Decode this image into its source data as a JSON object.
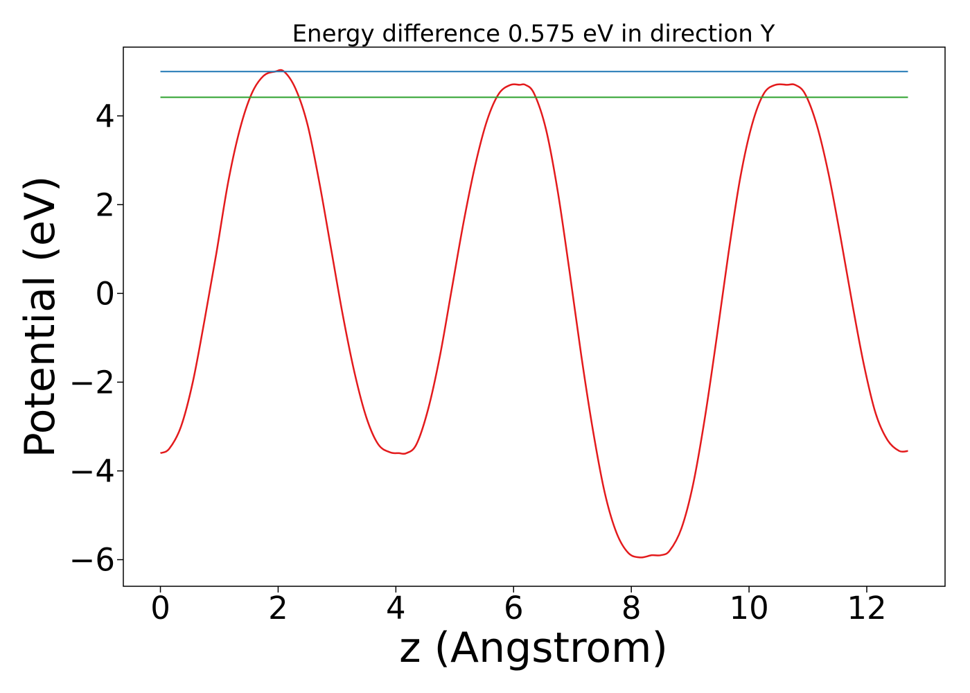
{
  "chart_data": {
    "type": "line",
    "title": "Energy difference 0.575 eV in direction Y",
    "xlabel": "z (Angstrom)",
    "ylabel": "Potential (eV)",
    "xlim": [
      -0.63,
      13.33
    ],
    "ylim": [
      -6.6,
      5.55
    ],
    "x_ticks": [
      0,
      2,
      4,
      6,
      8,
      10,
      12
    ],
    "x_tick_labels": [
      "0",
      "2",
      "4",
      "6",
      "8",
      "10",
      "12"
    ],
    "y_ticks": [
      -6,
      -4,
      -2,
      0,
      2,
      4
    ],
    "y_tick_labels": [
      "−6",
      "−4",
      "−2",
      "0",
      "2",
      "4"
    ],
    "grid": false,
    "legend": "none",
    "series": [
      {
        "color": "#e31a1c",
        "style": "curve",
        "x": [
          0.0,
          0.15,
          0.35,
          0.55,
          0.75,
          0.95,
          1.15,
          1.35,
          1.55,
          1.75,
          1.95,
          2.1,
          2.3,
          2.5,
          2.7,
          2.9,
          3.1,
          3.3,
          3.5,
          3.7,
          3.9,
          4.05,
          4.18,
          4.35,
          4.55,
          4.75,
          4.95,
          5.15,
          5.35,
          5.55,
          5.75,
          5.95,
          6.1,
          6.2,
          6.35,
          6.55,
          6.75,
          6.95,
          7.15,
          7.35,
          7.55,
          7.75,
          7.95,
          8.15,
          8.35,
          8.5,
          8.65,
          8.85,
          9.05,
          9.25,
          9.45,
          9.65,
          9.85,
          10.05,
          10.25,
          10.45,
          10.65,
          10.78,
          10.95,
          11.15,
          11.35,
          11.55,
          11.75,
          11.95,
          12.15,
          12.35,
          12.55,
          12.7
        ],
        "y": [
          -3.6,
          -3.5,
          -3.0,
          -2.0,
          -0.6,
          0.9,
          2.5,
          3.7,
          4.5,
          4.9,
          5.0,
          5.0,
          4.6,
          3.8,
          2.5,
          1.0,
          -0.5,
          -1.8,
          -2.8,
          -3.4,
          -3.58,
          -3.6,
          -3.6,
          -3.4,
          -2.6,
          -1.4,
          0.1,
          1.6,
          2.9,
          3.9,
          4.5,
          4.7,
          4.7,
          4.7,
          4.5,
          3.7,
          2.3,
          0.5,
          -1.4,
          -3.1,
          -4.5,
          -5.4,
          -5.85,
          -5.95,
          -5.9,
          -5.9,
          -5.8,
          -5.3,
          -4.3,
          -2.8,
          -1.0,
          0.9,
          2.6,
          3.8,
          4.5,
          4.7,
          4.7,
          4.7,
          4.5,
          3.8,
          2.7,
          1.3,
          -0.2,
          -1.6,
          -2.7,
          -3.3,
          -3.55,
          -3.55
        ]
      },
      {
        "color": "#1f77b4",
        "style": "hline",
        "x": [
          0.0,
          12.7
        ],
        "y": [
          5.0,
          5.0
        ]
      },
      {
        "color": "#2ca02c",
        "style": "hline",
        "x": [
          0.0,
          12.7
        ],
        "y": [
          4.42,
          4.42
        ]
      }
    ]
  }
}
